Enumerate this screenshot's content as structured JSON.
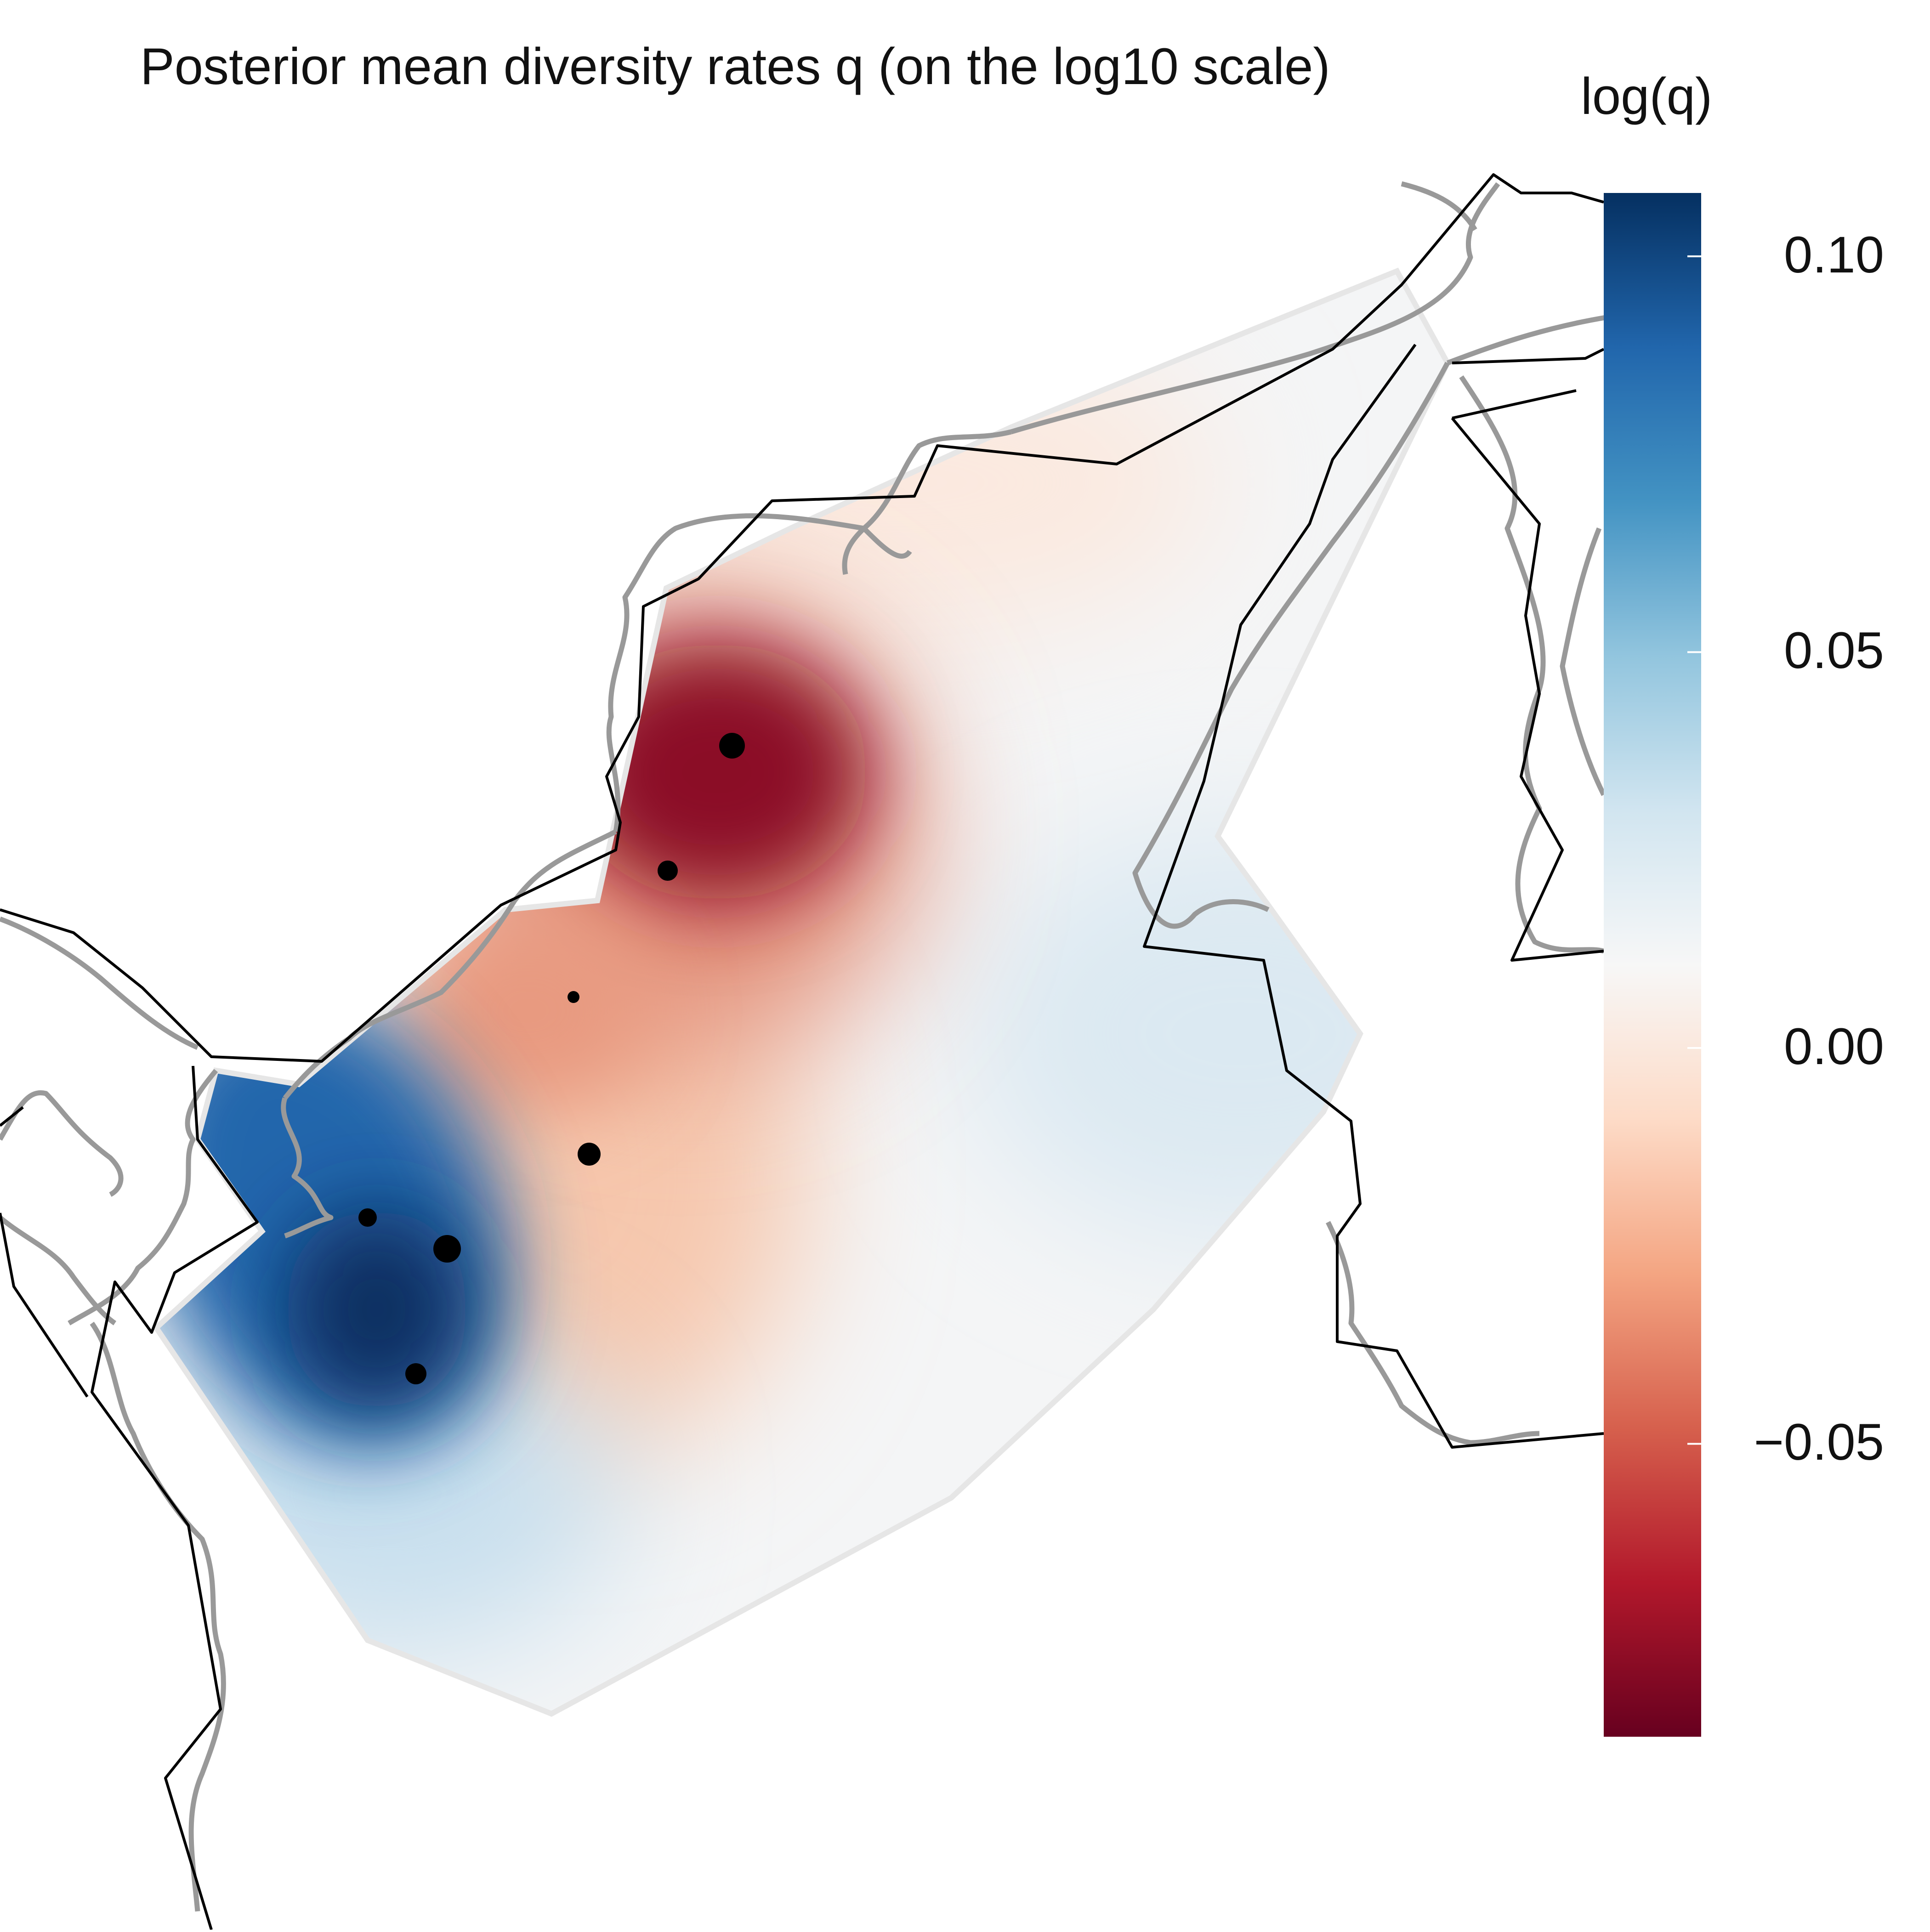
{
  "title": "Posterior mean diversity rates q (on the log10 scale)",
  "legend": {
    "title": "log(q)",
    "ticks": [
      {
        "value": 0.1,
        "label": "0.10"
      },
      {
        "value": 0.05,
        "label": "0.05"
      },
      {
        "value": 0.0,
        "label": "0.00"
      },
      {
        "value": -0.05,
        "label": "−0.05"
      }
    ],
    "range": [
      -0.087,
      0.108
    ],
    "palette": [
      "#053061",
      "#2166ac",
      "#4393c3",
      "#92c5de",
      "#d1e5f0",
      "#f7f7f7",
      "#fddbc7",
      "#f4a582",
      "#d6604d",
      "#b2182b",
      "#67001f"
    ]
  },
  "colors": {
    "habitat_outline": "#e6e6e6",
    "coastline": "#999999",
    "border": "#000000",
    "sample_dots": "#000000"
  },
  "samples": [
    {
      "name": "sample-1",
      "size_class": "large"
    },
    {
      "name": "sample-2",
      "size_class": "medium"
    },
    {
      "name": "sample-3",
      "size_class": "small"
    },
    {
      "name": "sample-4",
      "size_class": "medium"
    },
    {
      "name": "sample-5",
      "size_class": "medium"
    },
    {
      "name": "sample-6",
      "size_class": "large"
    },
    {
      "name": "sample-7",
      "size_class": "medium"
    }
  ]
}
